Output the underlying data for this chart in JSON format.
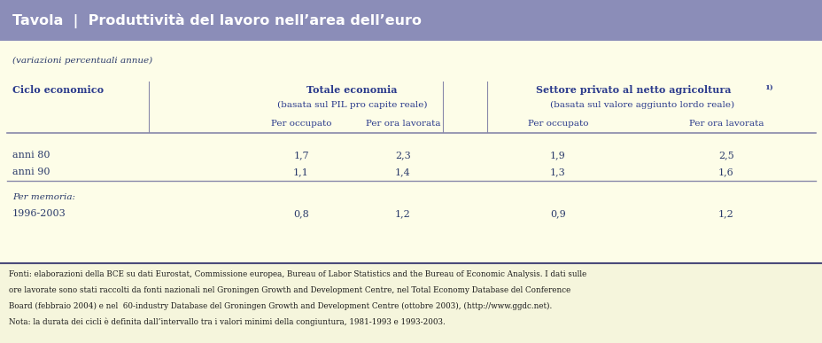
{
  "title": "Tavola  |  Produttività del lavoro nell’area dell’euro",
  "title_bg": "#8b8db8",
  "title_color": "#ffffff",
  "body_bg": "#fdfde8",
  "footnote_bg": "#f5f5dc",
  "subtitle": "(variazioni percentuali annue)",
  "col_header_left": "Ciclo economico",
  "col_header_group1": "Totale economia",
  "col_header_group1_sub": "(basata sul PIL pro capite reale)",
  "col_header_group2": "Settore privato al netto agricoltura ¹⧩",
  "col_header_group2_label": "Settore privato al netto agricoltura",
  "col_header_group2_super": "1)",
  "col_header_group2_sub": "(basata sul valore aggiunto lordo reale)",
  "col_sub1": "Per occupato",
  "col_sub2": "Per ora lavorata",
  "col_sub3": "Per occupato",
  "col_sub4": "Per ora lavorata",
  "rows": [
    {
      "label": "anni 80",
      "v1": "1,7",
      "v2": "2,3",
      "v3": "1,9",
      "v4": "2,5"
    },
    {
      "label": "anni 90",
      "v1": "1,1",
      "v2": "1,4",
      "v3": "1,3",
      "v4": "1,6"
    }
  ],
  "memo_label": "Per memoria:",
  "memo_row": {
    "label": "1996-2003",
    "v1": "0,8",
    "v2": "1,2",
    "v3": "0,9",
    "v4": "1,2"
  },
  "footnote_line1": "Fonti: elaborazioni della BCE su dati Eurostat, Commissione europea, Bureau of Labor Statistics and the Bureau of Economic Analysis. I dati sulle",
  "footnote_line2": "ore lavorate sono stati raccolti da fonti nazionali nel Groningen Growth and Development Centre, nel Total Economy Database del Conference",
  "footnote_line3": "Board (febbraio 2004) e nel  60-industry Database del Groningen Growth and Development Centre (ottobre 2003), (http://www.ggdc.net).",
  "footnote_line4": "Nota: la durata dei cicli è definita dall’intervallo tra i valori minimi della congiuntura, 1981-1993 e 1993-2003.",
  "header_color": "#2b3b8c",
  "body_color": "#2b3b6b",
  "line_color": "#8888aa",
  "fig_w": 9.29,
  "fig_h": 3.87,
  "dpi": 100
}
